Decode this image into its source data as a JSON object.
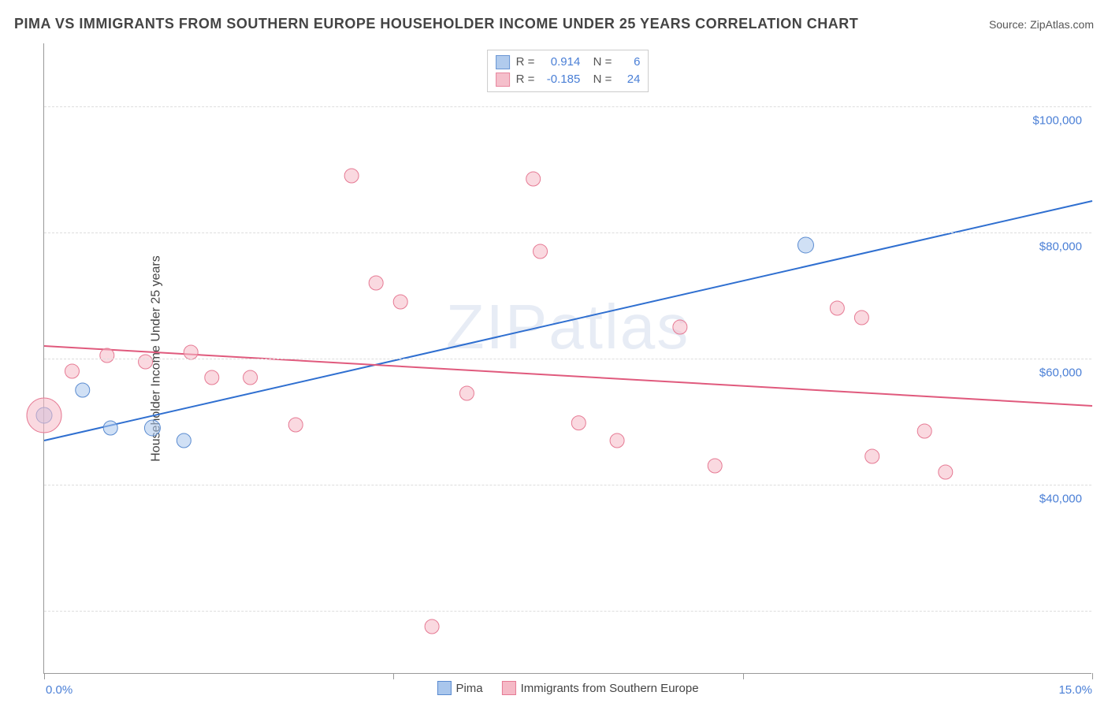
{
  "title": "PIMA VS IMMIGRANTS FROM SOUTHERN EUROPE HOUSEHOLDER INCOME UNDER 25 YEARS CORRELATION CHART",
  "source": "Source: ZipAtlas.com",
  "ylabel": "Householder Income Under 25 years",
  "watermark": "ZIPatlas",
  "chart": {
    "type": "scatter",
    "x_range": [
      0,
      15
    ],
    "y_range": [
      10000,
      110000
    ],
    "x_ticks": [
      0,
      5,
      10,
      15
    ],
    "x_tick_labels": {
      "0": "0.0%",
      "15": "15.0%"
    },
    "y_gridlines": [
      20000,
      40000,
      60000,
      80000,
      100000
    ],
    "y_tick_labels": {
      "40000": "$40,000",
      "60000": "$60,000",
      "80000": "$80,000",
      "100000": "$100,000"
    },
    "background_color": "#ffffff",
    "grid_color": "#dddddd",
    "axis_color": "#999999",
    "tick_label_color": "#4a7fd6",
    "series": [
      {
        "name": "Pima",
        "key": "pima",
        "fill": "#a9c6ec",
        "stroke": "#5a8bd0",
        "fill_opacity": 0.55,
        "line_color": "#2f6fd0",
        "line_width": 2,
        "R": "0.914",
        "N": "6",
        "trend": {
          "x1": 0,
          "y1": 47000,
          "x2": 15,
          "y2": 85000
        },
        "points": [
          {
            "x": 0.0,
            "y": 51000,
            "r": 10
          },
          {
            "x": 0.55,
            "y": 55000,
            "r": 9
          },
          {
            "x": 0.95,
            "y": 49000,
            "r": 9
          },
          {
            "x": 1.55,
            "y": 49000,
            "r": 10
          },
          {
            "x": 2.0,
            "y": 47000,
            "r": 9
          },
          {
            "x": 10.9,
            "y": 78000,
            "r": 10
          }
        ]
      },
      {
        "name": "Immigrants from Southern Europe",
        "key": "immigrants",
        "fill": "#f5b9c6",
        "stroke": "#e67a94",
        "fill_opacity": 0.55,
        "line_color": "#e05a7d",
        "line_width": 2,
        "R": "-0.185",
        "N": "24",
        "trend": {
          "x1": 0,
          "y1": 62000,
          "x2": 15,
          "y2": 52500
        },
        "points": [
          {
            "x": 0.0,
            "y": 51000,
            "r": 22
          },
          {
            "x": 0.4,
            "y": 58000,
            "r": 9
          },
          {
            "x": 0.9,
            "y": 60500,
            "r": 9
          },
          {
            "x": 1.45,
            "y": 59500,
            "r": 9
          },
          {
            "x": 2.1,
            "y": 61000,
            "r": 9
          },
          {
            "x": 2.4,
            "y": 57000,
            "r": 9
          },
          {
            "x": 2.95,
            "y": 57000,
            "r": 9
          },
          {
            "x": 3.6,
            "y": 49500,
            "r": 9
          },
          {
            "x": 4.4,
            "y": 89000,
            "r": 9
          },
          {
            "x": 4.75,
            "y": 72000,
            "r": 9
          },
          {
            "x": 5.1,
            "y": 69000,
            "r": 9
          },
          {
            "x": 5.55,
            "y": 17500,
            "r": 9
          },
          {
            "x": 6.05,
            "y": 54500,
            "r": 9
          },
          {
            "x": 7.0,
            "y": 88500,
            "r": 9
          },
          {
            "x": 7.1,
            "y": 77000,
            "r": 9
          },
          {
            "x": 7.65,
            "y": 49800,
            "r": 9
          },
          {
            "x": 8.2,
            "y": 47000,
            "r": 9
          },
          {
            "x": 9.1,
            "y": 65000,
            "r": 9
          },
          {
            "x": 9.6,
            "y": 43000,
            "r": 9
          },
          {
            "x": 11.35,
            "y": 68000,
            "r": 9
          },
          {
            "x": 11.7,
            "y": 66500,
            "r": 9
          },
          {
            "x": 11.85,
            "y": 44500,
            "r": 9
          },
          {
            "x": 12.6,
            "y": 48500,
            "r": 9
          },
          {
            "x": 12.9,
            "y": 42000,
            "r": 9
          }
        ]
      }
    ],
    "bottom_legend": [
      {
        "key": "pima",
        "label": "Pima"
      },
      {
        "key": "immigrants",
        "label": "Immigrants from Southern Europe"
      }
    ]
  }
}
